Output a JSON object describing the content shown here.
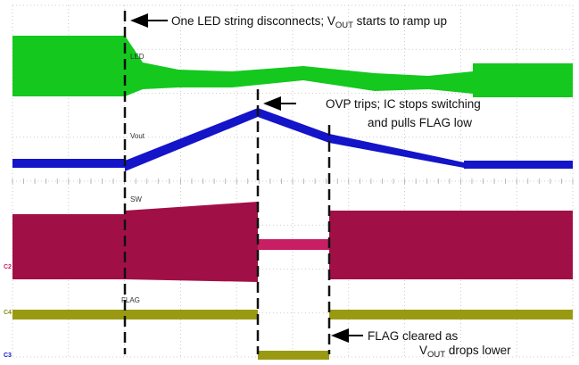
{
  "chart_data": {
    "type": "line",
    "grid": true,
    "channels": [
      {
        "id": "c1",
        "label": "LED",
        "marker": "",
        "color": "#14c81e"
      },
      {
        "id": "c2",
        "label": "Vout",
        "marker": "",
        "color": "#1414c8"
      },
      {
        "id": "c3",
        "label": "SW",
        "marker": "C2",
        "color": "#a01046"
      },
      {
        "id": "c4",
        "label": "FLAG",
        "marker": "C4",
        "color": "#9a9a12"
      }
    ],
    "bottom_marker": "C3",
    "annotations": [
      {
        "id": "disconnect",
        "text": "One LED string disconnects; V",
        "sub": "OUT",
        "text_after": " starts to ramp up"
      },
      {
        "id": "ovp_line1",
        "text": "OVP trips; IC stops switching"
      },
      {
        "id": "ovp_line2",
        "text": "and pulls FLAG low"
      },
      {
        "id": "flag_line1",
        "text": "FLAG cleared as"
      },
      {
        "id": "flag_line2_prefix",
        "text": "V",
        "sub": "OUT",
        "text_after": " drops lower"
      }
    ]
  }
}
